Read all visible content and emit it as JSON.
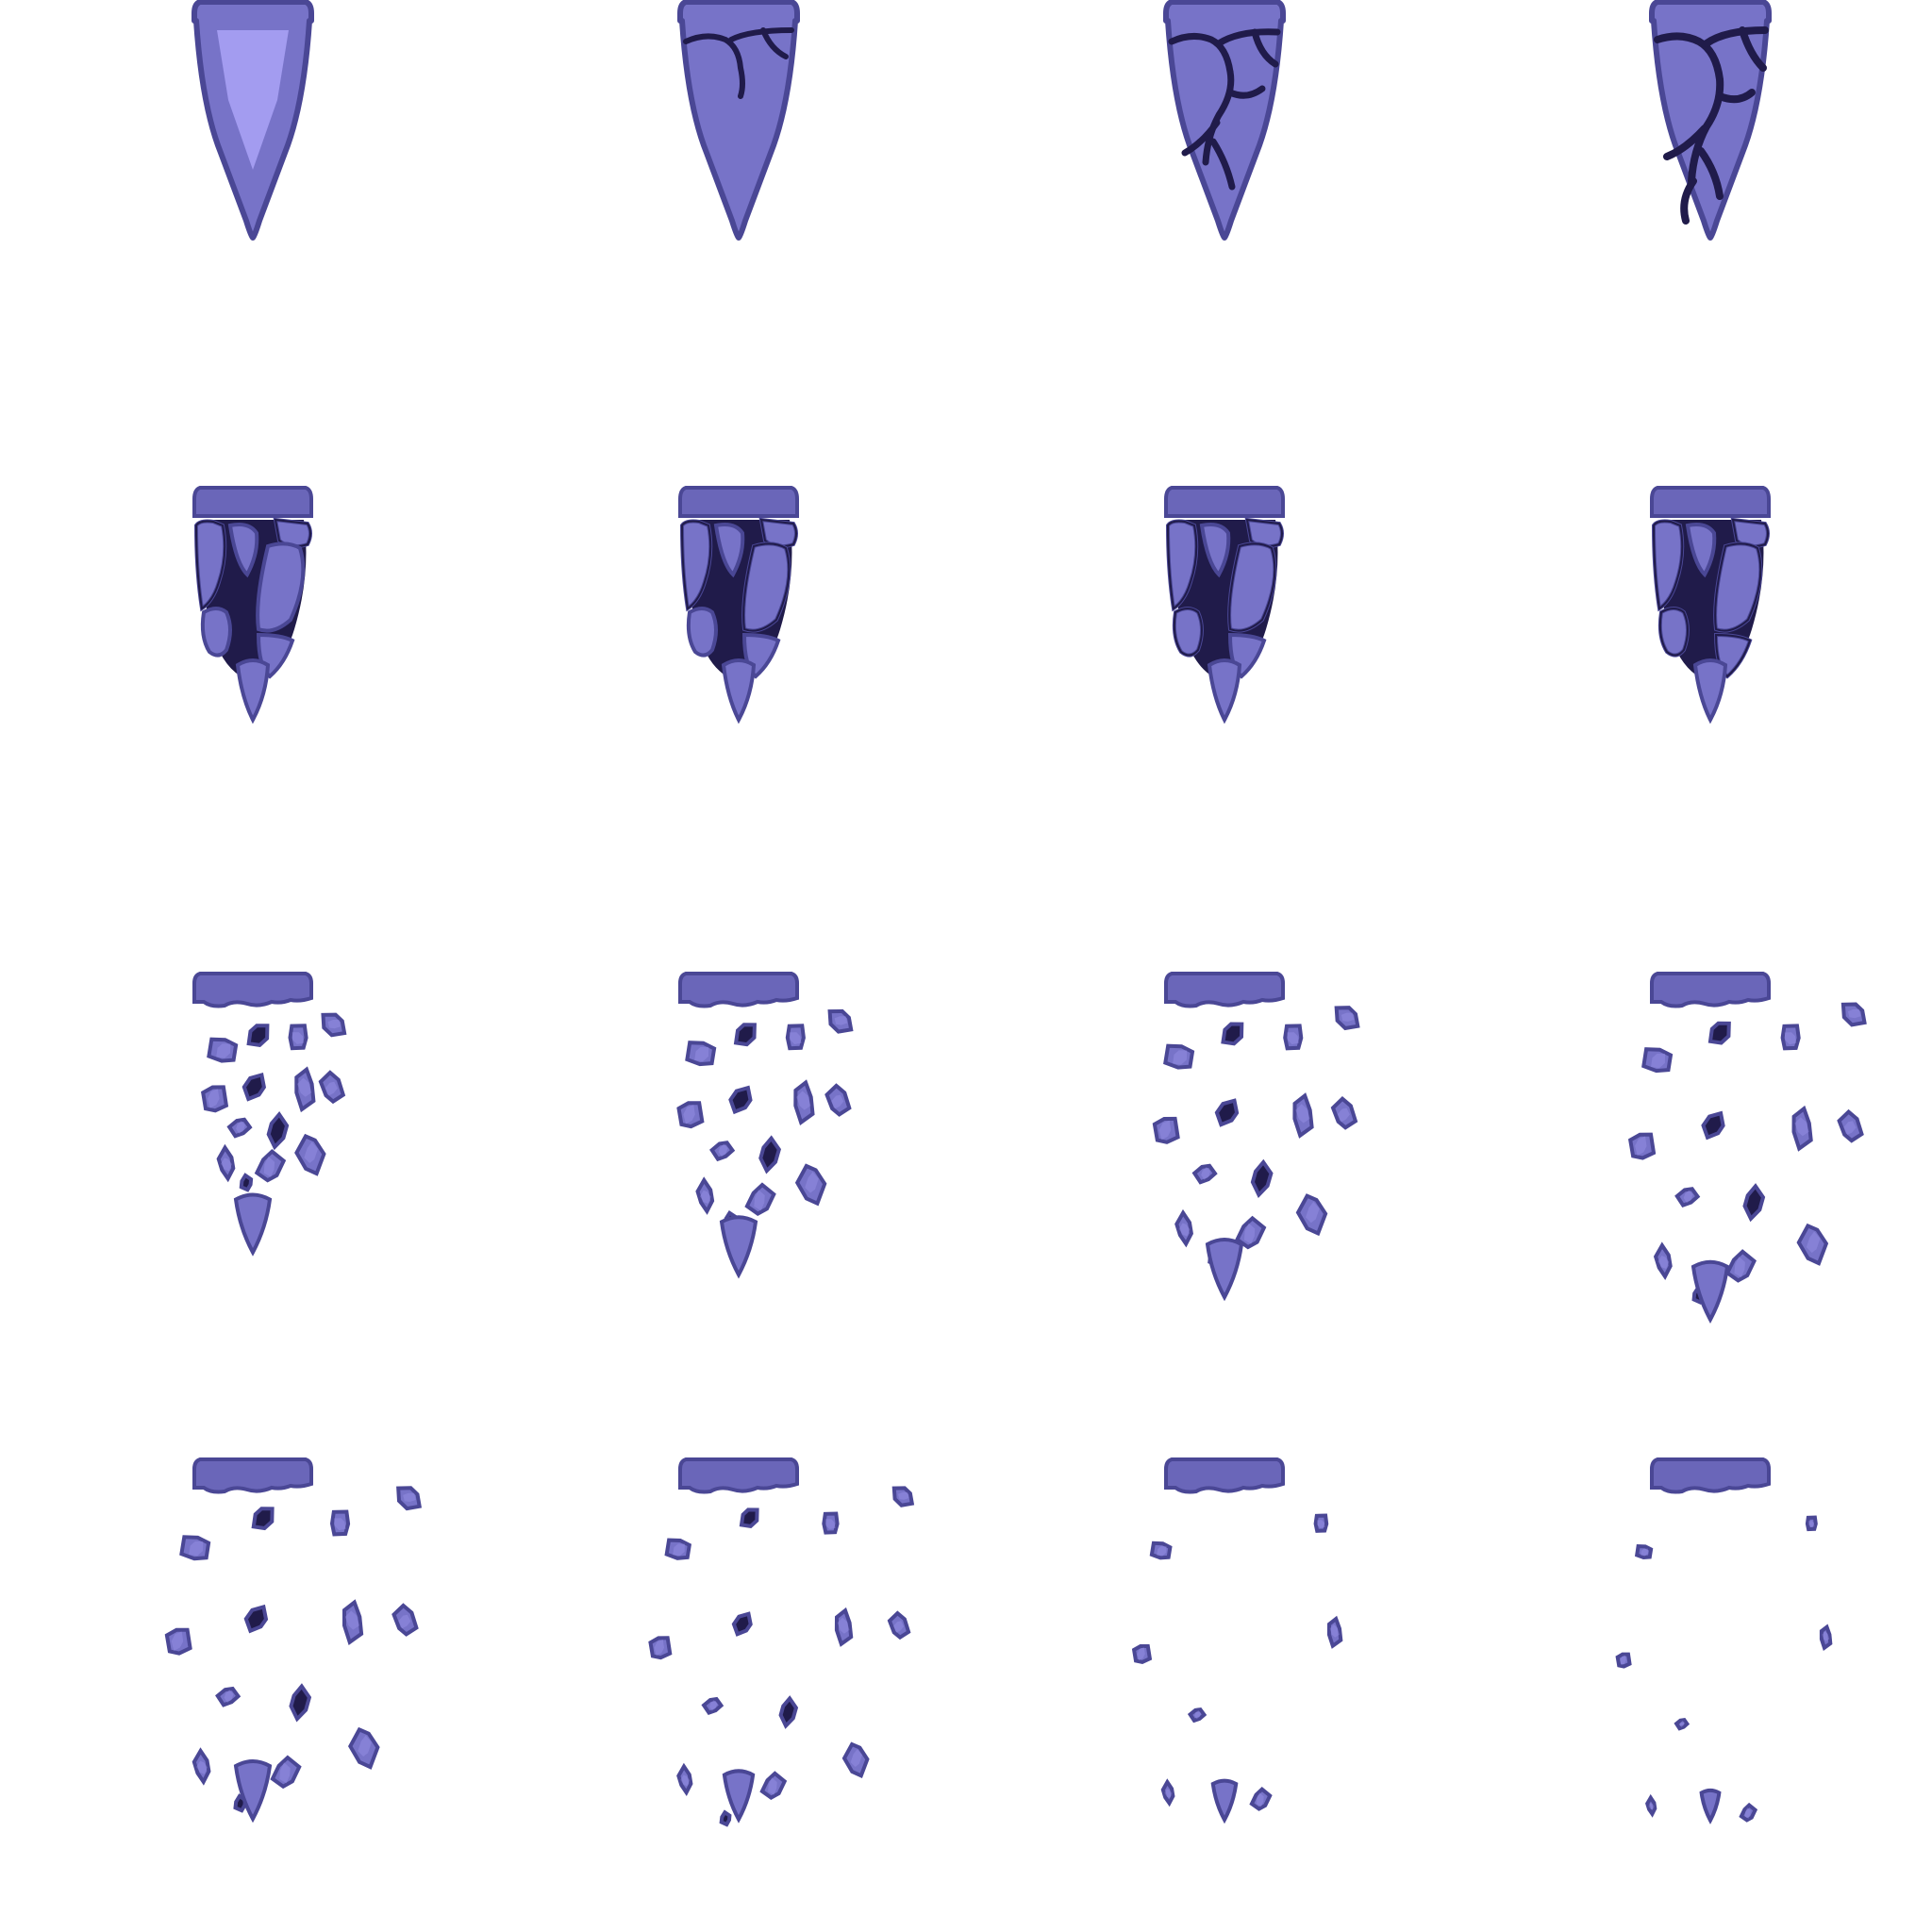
{
  "sprite_sheet": {
    "asset": "crystal-icicle-shatter",
    "grid": {
      "columns": 4,
      "rows": 4
    },
    "frame_count": 16,
    "background": "#ffffff",
    "colors": {
      "outline": "#4a4795",
      "body": "#7773c8",
      "highlight": "#a39cf0",
      "crack": "#201b4a",
      "cap": "#6a66b9",
      "cap_outline": "#4a4795"
    },
    "frames": [
      {
        "index": 1,
        "stage": "intact",
        "crack_level": 0,
        "shatter": 0
      },
      {
        "index": 2,
        "stage": "cracking",
        "crack_level": 1,
        "shatter": 0
      },
      {
        "index": 3,
        "stage": "cracking",
        "crack_level": 2,
        "shatter": 0
      },
      {
        "index": 4,
        "stage": "cracking",
        "crack_level": 3,
        "shatter": 0
      },
      {
        "index": 5,
        "stage": "fractured",
        "crack_level": 4,
        "shatter": 0
      },
      {
        "index": 6,
        "stage": "fractured",
        "crack_level": 5,
        "shatter": 0
      },
      {
        "index": 7,
        "stage": "fractured",
        "crack_level": 6,
        "shatter": 0
      },
      {
        "index": 8,
        "stage": "fractured",
        "crack_level": 7,
        "shatter": 0
      },
      {
        "index": 9,
        "stage": "shattering",
        "crack_level": 0,
        "shatter": 0.1
      },
      {
        "index": 10,
        "stage": "shattering",
        "crack_level": 0,
        "shatter": 0.35
      },
      {
        "index": 11,
        "stage": "shattering",
        "crack_level": 0,
        "shatter": 0.6
      },
      {
        "index": 12,
        "stage": "shattering",
        "crack_level": 0,
        "shatter": 0.85
      },
      {
        "index": 13,
        "stage": "dispersing",
        "crack_level": 0,
        "shatter": 1.0
      },
      {
        "index": 14,
        "stage": "dispersing",
        "crack_level": 0,
        "shatter": 1.1
      },
      {
        "index": 15,
        "stage": "dissolving",
        "crack_level": 0,
        "shatter": 1.2
      },
      {
        "index": 16,
        "stage": "dissolving",
        "crack_level": 0,
        "shatter": 1.3
      }
    ]
  }
}
